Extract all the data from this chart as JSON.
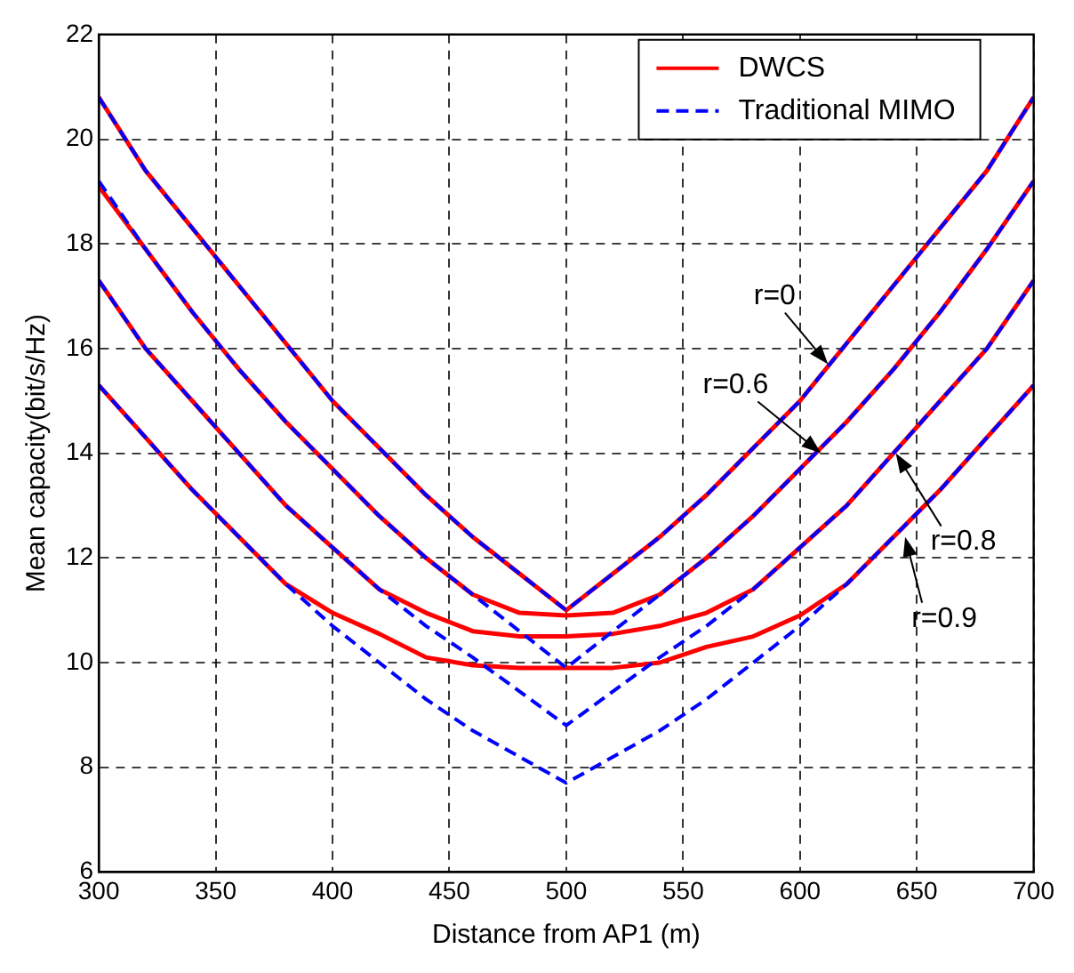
{
  "chart_data": {
    "type": "line",
    "xlabel": "Distance from AP1 (m)",
    "ylabel": "Mean capacity(bit/s/Hz)",
    "x": [
      300,
      320,
      340,
      360,
      380,
      400,
      420,
      440,
      460,
      480,
      500,
      520,
      540,
      560,
      580,
      600,
      620,
      640,
      660,
      680,
      700
    ],
    "xlim": [
      300,
      700
    ],
    "xticks": [
      300,
      350,
      400,
      450,
      500,
      550,
      600,
      650,
      700
    ],
    "ylim": [
      6,
      22
    ],
    "yticks": [
      6,
      8,
      10,
      12,
      14,
      16,
      18,
      20,
      22
    ],
    "grid": true,
    "legend": "top right",
    "marker": "none",
    "series": [
      {
        "name": "DWCS",
        "color": "#ff0000",
        "line_style": "solid",
        "values": [
          20.8,
          19.4,
          18.3,
          17.2,
          16.1,
          15.0,
          14.1,
          13.2,
          12.4,
          11.7,
          11.0,
          11.7,
          12.4,
          13.2,
          14.1,
          15.0,
          16.1,
          17.2,
          18.3,
          19.4,
          20.8
        ]
      },
      {
        "color": "#ff0000",
        "line_style": "solid",
        "values": [
          19.1,
          17.9,
          16.7,
          15.6,
          14.6,
          13.7,
          12.8,
          12.0,
          11.3,
          10.95,
          10.9,
          10.95,
          11.3,
          12.0,
          12.8,
          13.7,
          14.6,
          15.6,
          16.7,
          17.9,
          19.2
        ]
      },
      {
        "color": "#ff0000",
        "line_style": "solid",
        "values": [
          17.3,
          16.0,
          15.0,
          14.0,
          13.0,
          12.2,
          11.4,
          10.95,
          10.6,
          10.5,
          10.5,
          10.55,
          10.7,
          10.95,
          11.4,
          12.2,
          13.0,
          14.0,
          15.0,
          16.0,
          17.3
        ]
      },
      {
        "color": "#ff0000",
        "line_style": "solid",
        "values": [
          15.3,
          14.3,
          13.3,
          12.4,
          11.5,
          10.95,
          10.55,
          10.1,
          9.95,
          9.9,
          9.9,
          9.9,
          10.0,
          10.3,
          10.5,
          10.9,
          11.5,
          12.4,
          13.3,
          14.3,
          15.3
        ]
      },
      {
        "name": "Traditional MIMO",
        "color": "#0000ff",
        "line_style": "dashed",
        "values": [
          20.8,
          19.4,
          18.3,
          17.2,
          16.1,
          15.0,
          14.1,
          13.2,
          12.4,
          11.7,
          11.0,
          11.7,
          12.4,
          13.2,
          14.1,
          15.0,
          16.1,
          17.2,
          18.3,
          19.4,
          20.8
        ]
      },
      {
        "color": "#0000ff",
        "line_style": "dashed",
        "values": [
          19.2,
          17.9,
          16.7,
          15.6,
          14.6,
          13.7,
          12.8,
          12.0,
          11.3,
          10.6,
          9.9,
          10.6,
          11.3,
          12.0,
          12.8,
          13.7,
          14.6,
          15.6,
          16.7,
          17.9,
          19.2
        ]
      },
      {
        "color": "#0000ff",
        "line_style": "dashed",
        "values": [
          17.3,
          16.0,
          15.0,
          14.0,
          13.0,
          12.2,
          11.4,
          10.7,
          10.1,
          9.45,
          8.8,
          9.45,
          10.1,
          10.7,
          11.4,
          12.2,
          13.0,
          14.0,
          15.0,
          16.0,
          17.3
        ]
      },
      {
        "color": "#0000ff",
        "line_style": "dashed",
        "values": [
          15.3,
          14.3,
          13.3,
          12.4,
          11.5,
          10.7,
          10.0,
          9.3,
          8.7,
          8.2,
          7.7,
          8.2,
          8.7,
          9.3,
          10.0,
          10.7,
          11.5,
          12.4,
          13.3,
          14.3,
          15.3
        ]
      }
    ],
    "annotations": [
      {
        "text": "r=0",
        "x": 612,
        "y": 15.7
      },
      {
        "text": "r=0.6",
        "x": 609,
        "y": 14.0
      },
      {
        "text": "r=0.8",
        "x": 641,
        "y": 14.0
      },
      {
        "text": "r=0.9",
        "x": 645,
        "y": 12.4
      }
    ]
  }
}
